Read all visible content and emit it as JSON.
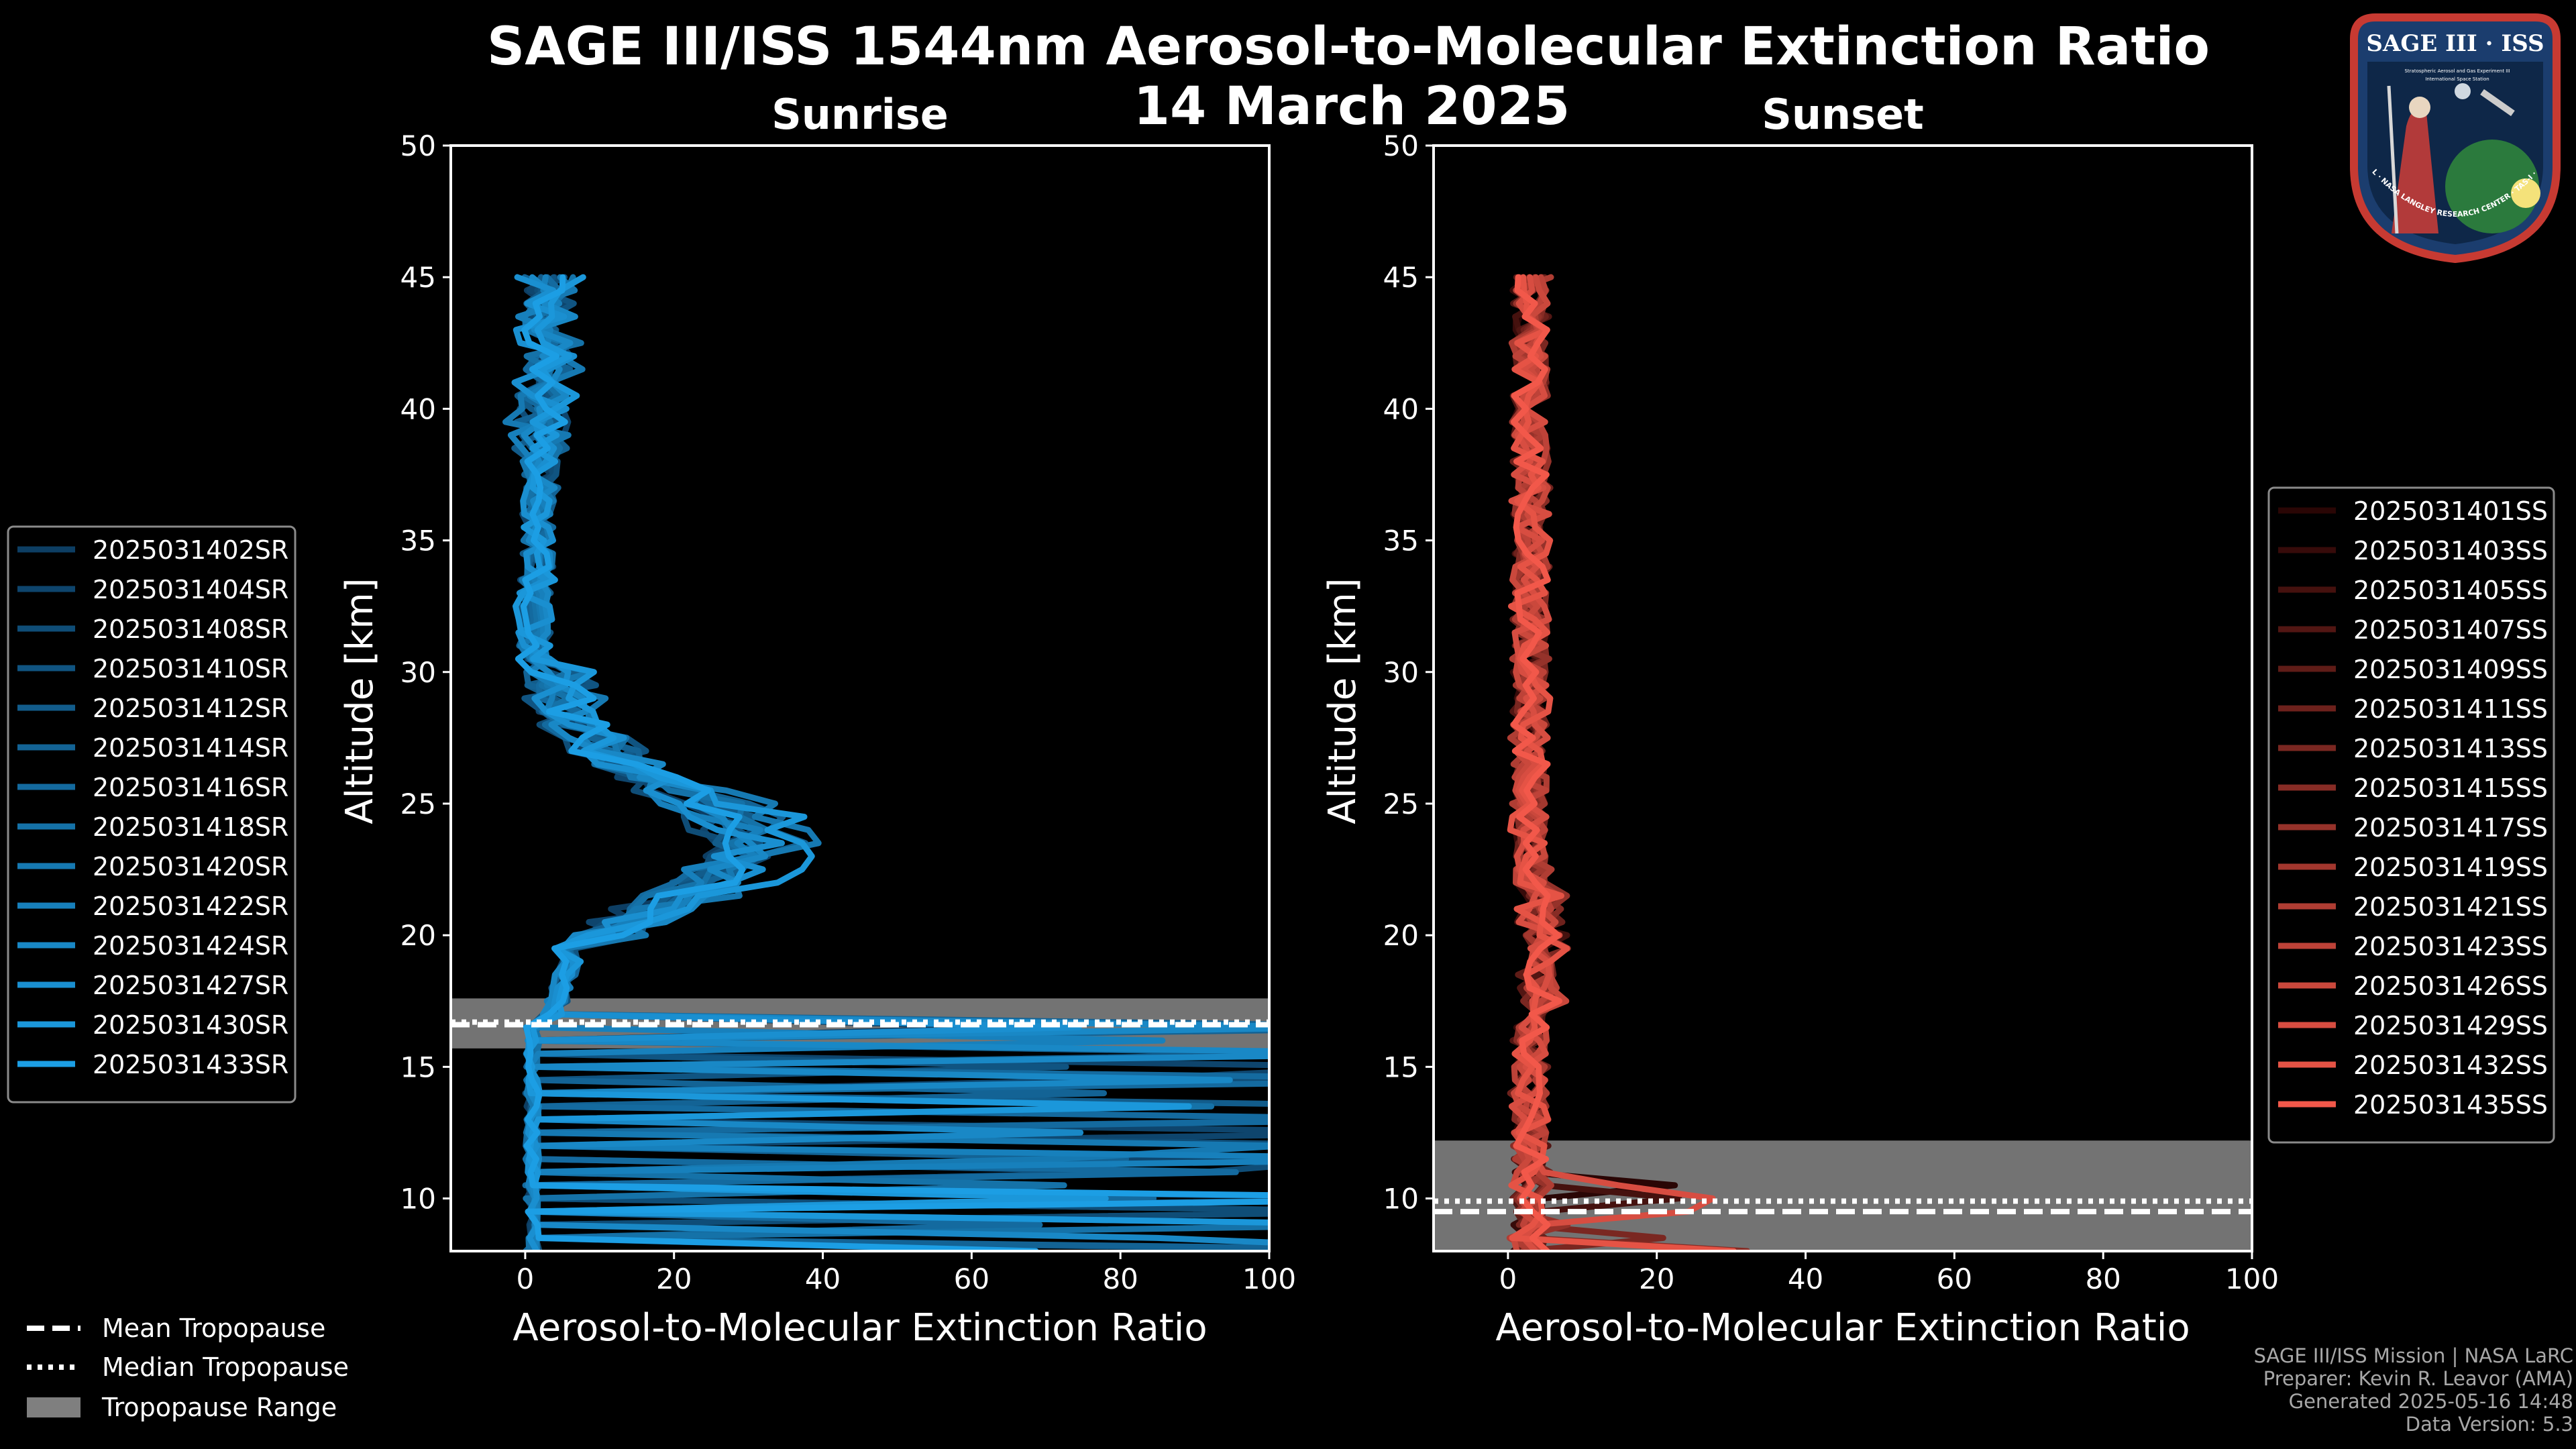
{
  "figure": {
    "title_line1": "SAGE III/ISS 1544nm Aerosol-to-Molecular Extinction Ratio",
    "title_line2": "14 March 2025",
    "background": "#000000",
    "text_color": "#ffffff"
  },
  "logo": {
    "title": "SAGE III · ISS",
    "subtitle": "Stratospheric Aerosol and Gas Experiment III",
    "subtitle2": "International Space Station",
    "ring_text": "BALL · NASA LANGLEY RESEARCH CENTER · TAS-I · ESA"
  },
  "credits": {
    "mission": "SAGE III/ISS Mission | NASA LaRC",
    "preparer": "Preparer: Kevin R. Leavor (AMA)",
    "generated": "Generated 2025-05-16 14:48",
    "version": "Data Version: 5.3"
  },
  "tropopause_legend": {
    "mean": "Mean Tropopause",
    "median": "Median Tropopause",
    "range": "Tropopause Range"
  },
  "chart_data": [
    {
      "type": "line",
      "panel": "left",
      "title": "Sunrise",
      "xlabel": "Aerosol-to-Molecular Extinction Ratio",
      "ylabel": "Altitude [km]",
      "xlim": [
        -10,
        100
      ],
      "ylim": [
        8,
        50
      ],
      "xticks": [
        0,
        20,
        40,
        60,
        80,
        100
      ],
      "yticks": [
        10,
        15,
        20,
        25,
        30,
        35,
        40,
        45
      ],
      "legend_position": "left",
      "color_start": "#0d3e63",
      "color_end": "#1c9ee4",
      "tropopause": {
        "mean": 16.6,
        "median": 16.7,
        "range": [
          15.7,
          17.6
        ]
      },
      "series": [
        {
          "name": "2025031402SR",
          "seed": 11,
          "peak": 24,
          "amp": 1.6
        },
        {
          "name": "2025031404SR",
          "seed": 12,
          "peak": 26,
          "amp": 1.8
        },
        {
          "name": "2025031408SR",
          "seed": 13,
          "peak": 22,
          "amp": 1.5
        },
        {
          "name": "2025031410SR",
          "seed": 14,
          "peak": 28,
          "amp": 1.7
        },
        {
          "name": "2025031412SR",
          "seed": 15,
          "peak": 25,
          "amp": 1.6
        },
        {
          "name": "2025031414SR",
          "seed": 16,
          "peak": 30,
          "amp": 1.9
        },
        {
          "name": "2025031416SR",
          "seed": 17,
          "peak": 23,
          "amp": 1.5
        },
        {
          "name": "2025031418SR",
          "seed": 18,
          "peak": 27,
          "amp": 1.8
        },
        {
          "name": "2025031420SR",
          "seed": 19,
          "peak": 31,
          "amp": 2.0
        },
        {
          "name": "2025031422SR",
          "seed": 20,
          "peak": 24,
          "amp": 1.6
        },
        {
          "name": "2025031424SR",
          "seed": 21,
          "peak": 29,
          "amp": 1.7
        },
        {
          "name": "2025031427SR",
          "seed": 22,
          "peak": 26,
          "amp": 1.8
        },
        {
          "name": "2025031430SR",
          "seed": 23,
          "peak": 32,
          "amp": 2.1
        },
        {
          "name": "2025031433SR",
          "seed": 24,
          "peak": 25,
          "amp": 1.6
        }
      ]
    },
    {
      "type": "line",
      "panel": "right",
      "title": "Sunset",
      "xlabel": "Aerosol-to-Molecular Extinction Ratio",
      "ylabel": "Altitude [km]",
      "xlim": [
        -10,
        100
      ],
      "ylim": [
        8,
        50
      ],
      "xticks": [
        0,
        20,
        40,
        60,
        80,
        100
      ],
      "yticks": [
        10,
        15,
        20,
        25,
        30,
        35,
        40,
        45
      ],
      "legend_position": "right",
      "color_start": "#2a0605",
      "color_end": "#f2584a",
      "tropopause": {
        "mean": 9.5,
        "median": 9.9,
        "range": [
          8,
          12.2
        ]
      },
      "series": [
        {
          "name": "2025031401SS",
          "seed": 31,
          "amp": 1.3
        },
        {
          "name": "2025031403SS",
          "seed": 32,
          "amp": 1.5
        },
        {
          "name": "2025031405SS",
          "seed": 33,
          "amp": 1.4
        },
        {
          "name": "2025031407SS",
          "seed": 34,
          "amp": 1.6
        },
        {
          "name": "2025031409SS",
          "seed": 35,
          "amp": 1.3
        },
        {
          "name": "2025031411SS",
          "seed": 36,
          "amp": 1.7
        },
        {
          "name": "2025031413SS",
          "seed": 37,
          "amp": 1.4
        },
        {
          "name": "2025031415SS",
          "seed": 38,
          "amp": 1.5
        },
        {
          "name": "2025031417SS",
          "seed": 39,
          "amp": 1.6
        },
        {
          "name": "2025031419SS",
          "seed": 40,
          "amp": 1.3
        },
        {
          "name": "2025031421SS",
          "seed": 41,
          "amp": 1.8
        },
        {
          "name": "2025031423SS",
          "seed": 42,
          "amp": 1.4
        },
        {
          "name": "2025031426SS",
          "seed": 43,
          "amp": 1.5
        },
        {
          "name": "2025031429SS",
          "seed": 44,
          "amp": 1.6
        },
        {
          "name": "2025031432SS",
          "seed": 45,
          "amp": 1.7
        },
        {
          "name": "2025031435SS",
          "seed": 46,
          "amp": 1.5
        }
      ]
    }
  ]
}
